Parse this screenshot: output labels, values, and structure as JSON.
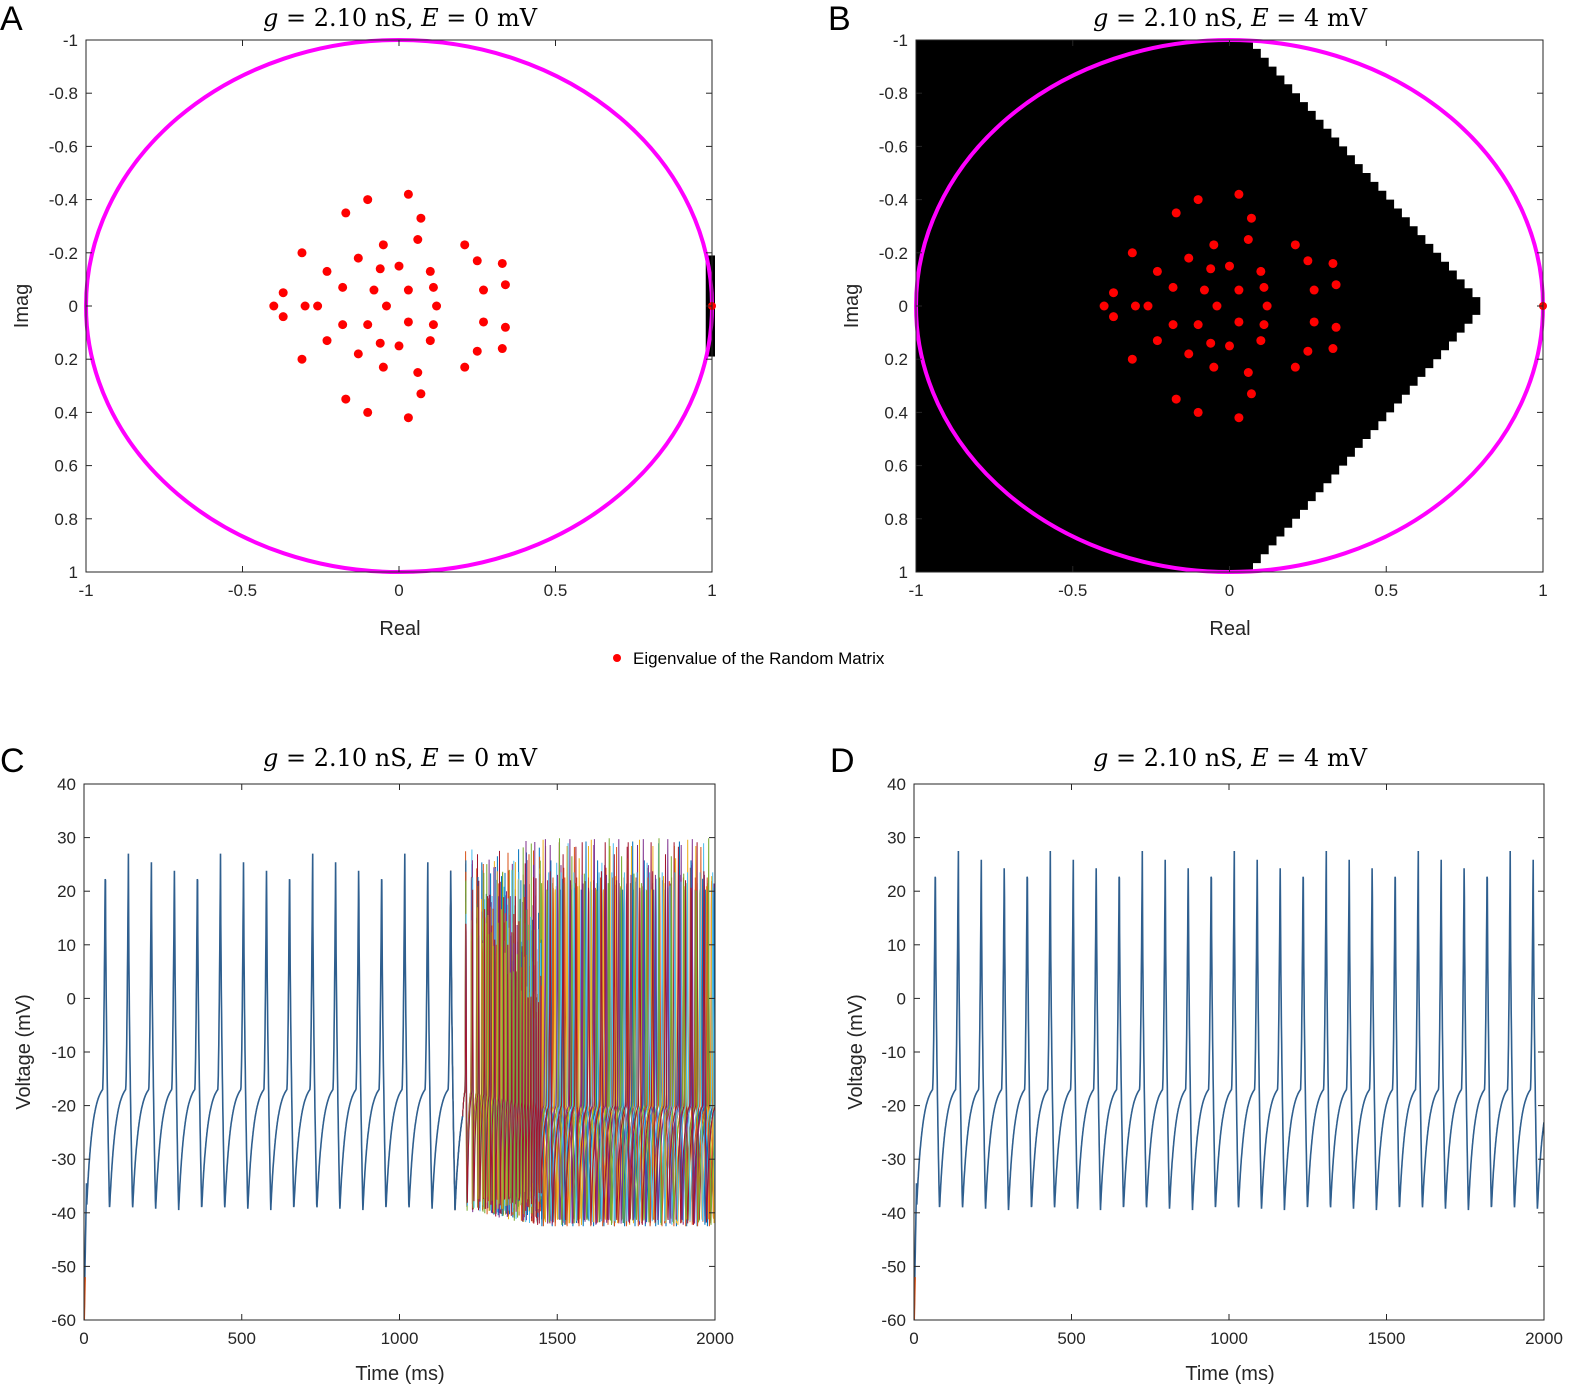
{
  "legend": {
    "label": "Eigenvalue of the Random Matrix",
    "marker_color": "#ff0000"
  },
  "colors": {
    "unit_circle": "#ff00ff",
    "eigenvalue": "#ff0000",
    "stable_region": "#000000",
    "trace_main": "#2f5f8f"
  },
  "trace_colors": [
    "#0072bd",
    "#d95319",
    "#edb120",
    "#7e2f8e",
    "#77ac30",
    "#4dbeee",
    "#a2142f"
  ],
  "chart_data": [
    {
      "id": "A",
      "type": "scatter",
      "panel_label": "A",
      "title": "g = 2.10 nS, E = 0 mV",
      "title_parts": {
        "g": "g",
        "g_val": "2.10",
        "g_unit": "nS",
        "e": "E",
        "e_val": "0",
        "e_unit": "mV"
      },
      "xlabel": "Real",
      "ylabel": "Imag",
      "xlim": [
        -1,
        1
      ],
      "ylim": [
        -1,
        1
      ],
      "y_reversed": true,
      "xticks": [
        "-1",
        "-0.5",
        "0",
        "0.5",
        "1"
      ],
      "yticks": [
        "-1",
        "-0.8",
        "-0.6",
        "-0.4",
        "-0.2",
        "0",
        "0.2",
        "0.4",
        "0.6",
        "0.8",
        "1"
      ],
      "unit_circle": true,
      "black_region": "small",
      "outlier_eigenvalue": [
        1.0,
        0.0
      ]
    },
    {
      "id": "B",
      "type": "scatter",
      "panel_label": "B",
      "title": "g = 2.10 nS, E = 4 mV",
      "title_parts": {
        "g": "g",
        "g_val": "2.10",
        "g_unit": "nS",
        "e": "E",
        "e_val": "4",
        "e_unit": "mV"
      },
      "xlabel": "Real",
      "ylabel": "Imag",
      "xlim": [
        -1,
        1
      ],
      "ylim": [
        -1,
        1
      ],
      "y_reversed": true,
      "xticks": [
        "-1",
        "-0.5",
        "0",
        "0.5",
        "1"
      ],
      "yticks": [
        "-1",
        "-0.8",
        "-0.6",
        "-0.4",
        "-0.2",
        "0",
        "0.2",
        "0.4",
        "0.6",
        "0.8",
        "1"
      ],
      "unit_circle": true,
      "black_region": "large",
      "black_region_apex": [
        0.8,
        0.0
      ],
      "black_region_top": [
        0.05,
        -1.0
      ],
      "black_region_bottom": [
        0.05,
        1.0
      ],
      "outlier_eigenvalue": [
        1.0,
        0.0
      ]
    },
    {
      "id": "C",
      "type": "line",
      "panel_label": "C",
      "title": "g = 2.10 nS, E = 0 mV",
      "title_parts": {
        "g": "g",
        "g_val": "2.10",
        "g_unit": "nS",
        "e": "E",
        "e_val": "0",
        "e_unit": "mV"
      },
      "xlabel": "Time (ms)",
      "ylabel": "Voltage (mV)",
      "xlim": [
        0,
        2000
      ],
      "ylim": [
        -60,
        40
      ],
      "xticks": [
        "0",
        "500",
        "1000",
        "1500",
        "2000"
      ],
      "yticks": [
        "-60",
        "-50",
        "-40",
        "-30",
        "-20",
        "-10",
        "0",
        "10",
        "20",
        "30",
        "40"
      ],
      "period_ms": 73,
      "spike_peak_mv": 27.5,
      "trough_mv": -39.5,
      "start_mv": -60,
      "desync_start_ms": 1200,
      "desync_peak_mv": 30,
      "desync_trough_mv": -42.5,
      "desync_period_ms": 37
    },
    {
      "id": "D",
      "type": "line",
      "panel_label": "D",
      "title": "g = 2.10 nS, E = 4 mV",
      "title_parts": {
        "g": "g",
        "g_val": "2.10",
        "g_unit": "nS",
        "e": "E",
        "e_val": "4",
        "e_unit": "mV"
      },
      "xlabel": "Time (ms)",
      "ylabel": "Voltage (mV)",
      "xlim": [
        0,
        2000
      ],
      "ylim": [
        -60,
        40
      ],
      "xticks": [
        "0",
        "500",
        "1000",
        "1500",
        "2000"
      ],
      "yticks": [
        "-60",
        "-50",
        "-40",
        "-30",
        "-20",
        "-10",
        "0",
        "10",
        "20",
        "30",
        "40"
      ],
      "period_ms": 73,
      "spike_peak_mv": 28,
      "trough_mv": -39.5,
      "start_mv": -60
    }
  ],
  "eigenvalues": [
    [
      0.03,
      -0.42
    ],
    [
      -0.1,
      -0.4
    ],
    [
      0.07,
      -0.33
    ],
    [
      -0.17,
      -0.35
    ],
    [
      0.06,
      -0.25
    ],
    [
      -0.05,
      -0.23
    ],
    [
      0.21,
      -0.23
    ],
    [
      -0.31,
      -0.2
    ],
    [
      -0.13,
      -0.18
    ],
    [
      0.25,
      -0.17
    ],
    [
      -0.06,
      -0.14
    ],
    [
      0.0,
      -0.15
    ],
    [
      0.33,
      -0.16
    ],
    [
      0.1,
      -0.13
    ],
    [
      -0.23,
      -0.13
    ],
    [
      0.34,
      -0.08
    ],
    [
      -0.37,
      -0.05
    ],
    [
      -0.18,
      -0.07
    ],
    [
      -0.08,
      -0.06
    ],
    [
      0.03,
      -0.06
    ],
    [
      0.11,
      -0.07
    ],
    [
      0.27,
      -0.06
    ],
    [
      -0.4,
      0.0
    ],
    [
      -0.3,
      0.0
    ],
    [
      -0.26,
      0.0
    ],
    [
      -0.04,
      0.0
    ],
    [
      0.12,
      0.0
    ],
    [
      -0.37,
      0.04
    ],
    [
      -0.18,
      0.07
    ],
    [
      -0.1,
      0.07
    ],
    [
      0.03,
      0.06
    ],
    [
      0.11,
      0.07
    ],
    [
      0.27,
      0.06
    ],
    [
      0.34,
      0.08
    ],
    [
      -0.23,
      0.13
    ],
    [
      -0.06,
      0.14
    ],
    [
      0.0,
      0.15
    ],
    [
      0.1,
      0.13
    ],
    [
      -0.31,
      0.2
    ],
    [
      -0.13,
      0.18
    ],
    [
      0.25,
      0.17
    ],
    [
      0.33,
      0.16
    ],
    [
      -0.05,
      0.23
    ],
    [
      0.21,
      0.23
    ],
    [
      0.06,
      0.25
    ],
    [
      -0.17,
      0.35
    ],
    [
      0.07,
      0.33
    ],
    [
      -0.1,
      0.4
    ],
    [
      0.03,
      0.42
    ]
  ]
}
